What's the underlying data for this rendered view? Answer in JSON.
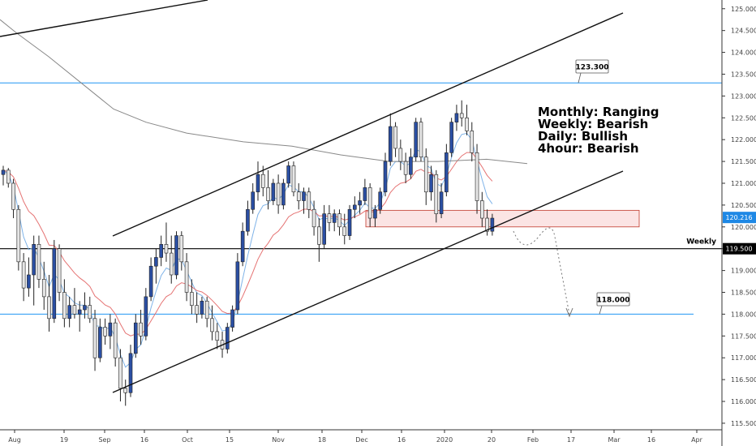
{
  "chart_data": {
    "type": "candlestick",
    "y_axis": {
      "range": [
        115.35,
        125.2
      ],
      "tick_labels": [
        "125.000",
        "124.500",
        "124.000",
        "123.500",
        "123.000",
        "122.500",
        "122.000",
        "121.500",
        "121.000",
        "120.500",
        "120.000",
        "119.500",
        "119.000",
        "118.500",
        "118.000",
        "117.500",
        "117.000",
        "116.500",
        "116.000",
        "115.500"
      ],
      "position": "right"
    },
    "x_axis": {
      "tick_labels": [
        "Aug",
        "19",
        "Sep",
        "16",
        "Oct",
        "15",
        "Nov",
        "18",
        "Dec",
        "16",
        "2020",
        "20",
        "Feb",
        "17",
        "Mar",
        "16",
        "Apr"
      ]
    },
    "current_price": {
      "value": 120.216,
      "label": "120.216",
      "color": "#1e88e5"
    },
    "levels": [
      {
        "name": "123.300",
        "value": 123.3,
        "color": "#2196f3"
      },
      {
        "name": "118.000",
        "value": 118.0,
        "color": "#2196f3"
      },
      {
        "name": "Weekly",
        "value": 119.5,
        "label": "119.500",
        "color": "#000000"
      }
    ],
    "annotations": [
      "Monthly: Ranging",
      "Weekly: Bearish",
      "Daily: Bullish",
      "4hour: Bearish"
    ],
    "zone": {
      "low": 120.0,
      "high": 120.38,
      "fill": "#fbe4e4",
      "stroke": "#c0392b"
    },
    "candle_colors": {
      "up": "#2b4fa3",
      "down": "#e6e6e6",
      "outline": "#222222"
    },
    "ma_colors": {
      "ma_fast": "#7fb3e8",
      "ma_mid": "#e57373",
      "ma_slow": "#888888"
    },
    "candles": [
      {
        "o": 121.2,
        "h": 121.4,
        "l": 120.95,
        "c": 121.3
      },
      {
        "o": 121.3,
        "h": 121.35,
        "l": 120.9,
        "c": 121.0
      },
      {
        "o": 121.0,
        "h": 121.1,
        "l": 120.2,
        "c": 120.4
      },
      {
        "o": 120.4,
        "h": 120.5,
        "l": 119.0,
        "c": 119.2
      },
      {
        "o": 119.2,
        "h": 119.4,
        "l": 118.3,
        "c": 118.6
      },
      {
        "o": 118.6,
        "h": 119.3,
        "l": 118.4,
        "c": 118.9
      },
      {
        "o": 118.9,
        "h": 119.8,
        "l": 118.2,
        "c": 119.6
      },
      {
        "o": 119.6,
        "h": 119.8,
        "l": 118.6,
        "c": 118.8
      },
      {
        "o": 118.8,
        "h": 119.2,
        "l": 118.1,
        "c": 118.4
      },
      {
        "o": 118.4,
        "h": 118.9,
        "l": 117.6,
        "c": 117.9
      },
      {
        "o": 117.9,
        "h": 119.7,
        "l": 117.8,
        "c": 119.5
      },
      {
        "o": 119.5,
        "h": 119.6,
        "l": 118.3,
        "c": 118.5
      },
      {
        "o": 118.5,
        "h": 118.8,
        "l": 117.7,
        "c": 117.9
      },
      {
        "o": 117.9,
        "h": 118.4,
        "l": 117.7,
        "c": 118.2
      },
      {
        "o": 118.2,
        "h": 118.6,
        "l": 117.9,
        "c": 118.0
      },
      {
        "o": 118.0,
        "h": 118.3,
        "l": 117.6,
        "c": 118.1
      },
      {
        "o": 118.1,
        "h": 118.5,
        "l": 117.9,
        "c": 118.2
      },
      {
        "o": 118.2,
        "h": 118.4,
        "l": 117.8,
        "c": 117.9
      },
      {
        "o": 117.9,
        "h": 118.1,
        "l": 116.7,
        "c": 117.0
      },
      {
        "o": 117.0,
        "h": 117.9,
        "l": 116.9,
        "c": 117.7
      },
      {
        "o": 117.7,
        "h": 117.9,
        "l": 117.3,
        "c": 117.5
      },
      {
        "o": 117.5,
        "h": 118.0,
        "l": 117.2,
        "c": 117.8
      },
      {
        "o": 117.8,
        "h": 117.9,
        "l": 116.8,
        "c": 117.0
      },
      {
        "o": 117.0,
        "h": 117.2,
        "l": 116.0,
        "c": 116.3
      },
      {
        "o": 116.3,
        "h": 116.5,
        "l": 115.9,
        "c": 116.2
      },
      {
        "o": 116.2,
        "h": 117.3,
        "l": 116.1,
        "c": 117.1
      },
      {
        "o": 117.1,
        "h": 118.0,
        "l": 117.0,
        "c": 117.8
      },
      {
        "o": 117.8,
        "h": 118.1,
        "l": 117.3,
        "c": 117.5
      },
      {
        "o": 117.5,
        "h": 118.6,
        "l": 117.4,
        "c": 118.4
      },
      {
        "o": 118.4,
        "h": 119.3,
        "l": 118.3,
        "c": 119.1
      },
      {
        "o": 119.1,
        "h": 119.5,
        "l": 118.7,
        "c": 119.3
      },
      {
        "o": 119.3,
        "h": 119.8,
        "l": 119.1,
        "c": 119.6
      },
      {
        "o": 119.6,
        "h": 120.1,
        "l": 119.2,
        "c": 119.4
      },
      {
        "o": 119.4,
        "h": 119.8,
        "l": 118.7,
        "c": 118.9
      },
      {
        "o": 118.9,
        "h": 119.9,
        "l": 118.8,
        "c": 119.8
      },
      {
        "o": 119.8,
        "h": 119.9,
        "l": 119.0,
        "c": 119.2
      },
      {
        "o": 119.2,
        "h": 119.4,
        "l": 118.3,
        "c": 118.5
      },
      {
        "o": 118.5,
        "h": 118.8,
        "l": 118.0,
        "c": 118.2
      },
      {
        "o": 118.2,
        "h": 118.5,
        "l": 117.8,
        "c": 118.0
      },
      {
        "o": 118.0,
        "h": 118.4,
        "l": 117.9,
        "c": 118.3
      },
      {
        "o": 118.3,
        "h": 118.4,
        "l": 117.7,
        "c": 117.9
      },
      {
        "o": 117.9,
        "h": 118.2,
        "l": 117.4,
        "c": 117.6
      },
      {
        "o": 117.6,
        "h": 117.8,
        "l": 117.2,
        "c": 117.4
      },
      {
        "o": 117.4,
        "h": 117.6,
        "l": 117.0,
        "c": 117.2
      },
      {
        "o": 117.2,
        "h": 117.8,
        "l": 117.1,
        "c": 117.7
      },
      {
        "o": 117.7,
        "h": 118.2,
        "l": 117.6,
        "c": 118.1
      },
      {
        "o": 118.1,
        "h": 119.4,
        "l": 118.0,
        "c": 119.2
      },
      {
        "o": 119.2,
        "h": 120.1,
        "l": 119.1,
        "c": 119.9
      },
      {
        "o": 119.9,
        "h": 120.6,
        "l": 119.8,
        "c": 120.4
      },
      {
        "o": 120.4,
        "h": 121.0,
        "l": 120.3,
        "c": 120.8
      },
      {
        "o": 120.8,
        "h": 121.5,
        "l": 120.6,
        "c": 121.2
      },
      {
        "o": 121.2,
        "h": 121.4,
        "l": 120.7,
        "c": 120.9
      },
      {
        "o": 120.9,
        "h": 121.3,
        "l": 120.4,
        "c": 120.6
      },
      {
        "o": 120.6,
        "h": 121.1,
        "l": 120.5,
        "c": 121.0
      },
      {
        "o": 121.0,
        "h": 121.2,
        "l": 120.3,
        "c": 120.5
      },
      {
        "o": 120.5,
        "h": 121.1,
        "l": 120.4,
        "c": 121.0
      },
      {
        "o": 121.0,
        "h": 121.5,
        "l": 120.9,
        "c": 121.4
      },
      {
        "o": 121.4,
        "h": 121.5,
        "l": 120.7,
        "c": 120.8
      },
      {
        "o": 120.8,
        "h": 121.0,
        "l": 120.4,
        "c": 120.6
      },
      {
        "o": 120.6,
        "h": 120.9,
        "l": 120.3,
        "c": 120.8
      },
      {
        "o": 120.8,
        "h": 120.9,
        "l": 120.2,
        "c": 120.4
      },
      {
        "o": 120.4,
        "h": 120.6,
        "l": 119.8,
        "c": 120.0
      },
      {
        "o": 120.0,
        "h": 120.2,
        "l": 119.2,
        "c": 119.6
      },
      {
        "o": 119.6,
        "h": 120.5,
        "l": 119.5,
        "c": 120.3
      },
      {
        "o": 120.3,
        "h": 120.5,
        "l": 119.9,
        "c": 120.1
      },
      {
        "o": 120.1,
        "h": 120.4,
        "l": 119.9,
        "c": 120.3
      },
      {
        "o": 120.3,
        "h": 120.4,
        "l": 119.8,
        "c": 120.0
      },
      {
        "o": 120.0,
        "h": 120.3,
        "l": 119.6,
        "c": 119.8
      },
      {
        "o": 119.8,
        "h": 120.5,
        "l": 119.7,
        "c": 120.4
      },
      {
        "o": 120.4,
        "h": 120.7,
        "l": 120.2,
        "c": 120.5
      },
      {
        "o": 120.5,
        "h": 120.8,
        "l": 120.3,
        "c": 120.6
      },
      {
        "o": 120.6,
        "h": 121.1,
        "l": 120.5,
        "c": 120.9
      },
      {
        "o": 120.9,
        "h": 121.0,
        "l": 120.0,
        "c": 120.2
      },
      {
        "o": 120.2,
        "h": 120.5,
        "l": 120.0,
        "c": 120.4
      },
      {
        "o": 120.4,
        "h": 120.9,
        "l": 120.3,
        "c": 120.8
      },
      {
        "o": 120.8,
        "h": 121.7,
        "l": 120.7,
        "c": 121.5
      },
      {
        "o": 121.5,
        "h": 122.6,
        "l": 121.4,
        "c": 122.3
      },
      {
        "o": 122.3,
        "h": 122.4,
        "l": 121.6,
        "c": 121.8
      },
      {
        "o": 121.8,
        "h": 122.0,
        "l": 121.3,
        "c": 121.5
      },
      {
        "o": 121.5,
        "h": 121.7,
        "l": 121.0,
        "c": 121.2
      },
      {
        "o": 121.2,
        "h": 121.8,
        "l": 121.1,
        "c": 121.6
      },
      {
        "o": 121.6,
        "h": 122.5,
        "l": 121.5,
        "c": 122.4
      },
      {
        "o": 122.4,
        "h": 122.5,
        "l": 121.5,
        "c": 121.6
      },
      {
        "o": 121.6,
        "h": 121.8,
        "l": 120.5,
        "c": 120.8
      },
      {
        "o": 120.8,
        "h": 121.4,
        "l": 120.6,
        "c": 121.2
      },
      {
        "o": 121.2,
        "h": 121.3,
        "l": 120.1,
        "c": 120.3
      },
      {
        "o": 120.3,
        "h": 121.0,
        "l": 120.2,
        "c": 120.8
      },
      {
        "o": 120.8,
        "h": 121.9,
        "l": 120.7,
        "c": 121.7
      },
      {
        "o": 121.7,
        "h": 122.5,
        "l": 121.6,
        "c": 122.4
      },
      {
        "o": 122.4,
        "h": 122.8,
        "l": 122.2,
        "c": 122.6
      },
      {
        "o": 122.6,
        "h": 122.9,
        "l": 122.3,
        "c": 122.5
      },
      {
        "o": 122.5,
        "h": 122.8,
        "l": 122.1,
        "c": 122.2
      },
      {
        "o": 122.2,
        "h": 122.4,
        "l": 121.5,
        "c": 121.7
      },
      {
        "o": 121.7,
        "h": 121.9,
        "l": 120.3,
        "c": 120.6
      },
      {
        "o": 120.6,
        "h": 120.8,
        "l": 120.0,
        "c": 120.2
      },
      {
        "o": 120.2,
        "h": 120.4,
        "l": 119.8,
        "c": 119.9
      },
      {
        "o": 119.9,
        "h": 120.3,
        "l": 119.8,
        "c": 120.2
      }
    ]
  }
}
